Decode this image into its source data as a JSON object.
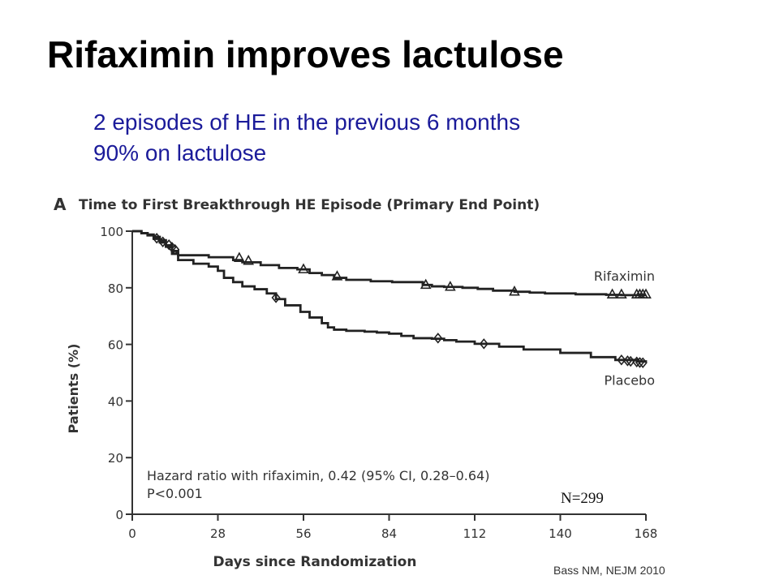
{
  "slide": {
    "title": "Rifaximin improves lactulose",
    "bullets": [
      "2 episodes of HE in the previous 6 months",
      "90% on lactulose"
    ],
    "citation": "Bass NM, NEJM 2010"
  },
  "chart_data": {
    "type": "line",
    "panel_letter": "A",
    "title": "Time to First Breakthrough HE Episode (Primary End Point)",
    "xlabel": "Days since Randomization",
    "ylabel": "Patients (%)",
    "xlim": [
      0,
      168
    ],
    "ylim": [
      0,
      100
    ],
    "xticks": [
      0,
      28,
      56,
      84,
      112,
      140,
      168
    ],
    "yticks": [
      0,
      20,
      40,
      60,
      80,
      100
    ],
    "grid": false,
    "step": true,
    "line_color": "#222222",
    "series": [
      {
        "name": "Rifaximin",
        "marker": "triangle",
        "x": [
          0,
          3,
          5,
          7,
          9,
          11,
          13,
          15,
          25,
          30,
          33,
          36,
          42,
          48,
          54,
          58,
          62,
          66,
          70,
          78,
          85,
          95,
          98,
          102,
          108,
          113,
          118,
          125,
          130,
          135,
          145,
          155,
          160,
          168
        ],
        "y": [
          100,
          99.3,
          98.8,
          98,
          96.8,
          95,
          93,
          91.5,
          90.8,
          90.8,
          89.8,
          89,
          88,
          87,
          86.5,
          85.2,
          84.5,
          83.5,
          82.8,
          82.3,
          82,
          81,
          80.5,
          80.3,
          80,
          79.6,
          79,
          78.6,
          78.3,
          78,
          77.7,
          77.5,
          77.4,
          77.4
        ],
        "censor_x": [
          35,
          38,
          56,
          67,
          96,
          104,
          125,
          157,
          160,
          165,
          166,
          167,
          168
        ],
        "censor_y": [
          90.5,
          89.5,
          86.5,
          84,
          81,
          80.3,
          78.6,
          77.6,
          77.6,
          77.6,
          77.6,
          77.6,
          77.6
        ]
      },
      {
        "name": "Placebo",
        "marker": "diamond",
        "x": [
          0,
          3,
          5,
          7,
          9,
          11,
          13,
          15,
          20,
          25,
          28,
          30,
          33,
          36,
          40,
          44,
          47,
          50,
          55,
          58,
          62,
          64,
          66,
          70,
          76,
          80,
          84,
          88,
          92,
          98,
          102,
          106,
          112,
          120,
          128,
          140,
          150,
          158,
          165,
          168
        ],
        "y": [
          100,
          99.3,
          98.5,
          97.3,
          96,
          94.5,
          92,
          89.8,
          88.5,
          87.5,
          86,
          83.5,
          82,
          80.5,
          79.5,
          78,
          76,
          73.8,
          71.5,
          69.5,
          67.5,
          66,
          65.2,
          64.8,
          64.5,
          64.2,
          63.8,
          63,
          62.2,
          62,
          61.5,
          61,
          60.2,
          59.2,
          58.2,
          57,
          55.5,
          54.5,
          54,
          53.5
        ],
        "censor_x": [
          8,
          10,
          12,
          13,
          14,
          47,
          100,
          115,
          160,
          162,
          163,
          165,
          166,
          167
        ],
        "censor_y": [
          97.5,
          96.2,
          95.2,
          94.3,
          93.5,
          76.5,
          62.2,
          60.2,
          54.5,
          54.2,
          54,
          53.8,
          53.6,
          53.5
        ]
      }
    ],
    "annotations": [
      "Hazard ratio with rifaximin, 0.42 (95% CI, 0.28–0.64)",
      "P<0.001",
      "N=299"
    ]
  }
}
